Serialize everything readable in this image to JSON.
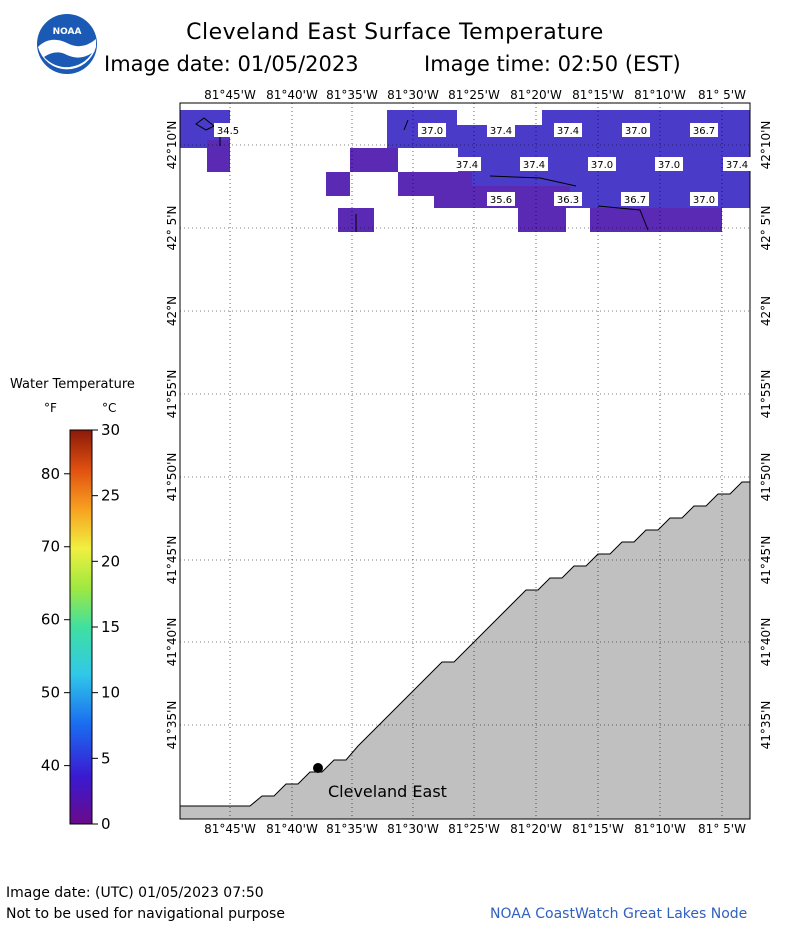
{
  "header": {
    "title": "Cleveland East Surface Temperature",
    "image_date": "Image date: 01/05/2023",
    "image_time": "Image time: 02:50 (EST)"
  },
  "logo": {
    "text": "NOAA"
  },
  "legend": {
    "title": "Water Temperature",
    "unit_f": "°F",
    "unit_c": "°C",
    "f_ticks": [
      "80",
      "70",
      "60",
      "50",
      "40"
    ],
    "c_ticks": [
      "30",
      "25",
      "20",
      "15",
      "10",
      "5",
      "0"
    ]
  },
  "map": {
    "lon_labels": [
      "81°45'W",
      "81°40'W",
      "81°35'W",
      "81°30'W",
      "81°25'W",
      "81°20'W",
      "81°15'W",
      "81°10'W",
      "81° 5'W"
    ],
    "lat_labels": [
      "42°10'N",
      "42° 5'N",
      "42°N",
      "41°55'N",
      "41°50'N",
      "41°45'N",
      "41°40'N",
      "41°35'N"
    ],
    "station_name": "Cleveland East",
    "temperature_labels": [
      "34.5",
      "37.0",
      "37.4",
      "37.4",
      "37.0",
      "36.7",
      "37.4",
      "37.4",
      "37.0",
      "37.0",
      "37.4",
      "35.6",
      "36.3",
      "36.7",
      "37.0"
    ],
    "colors": {
      "land": "#c0c0c0",
      "water_cold": "#4a3cc8",
      "water_colder": "#5a2ab4",
      "water_coldest": "#6e22aa"
    }
  },
  "footer": {
    "utc_date": "Image date: (UTC) 01/05/2023  07:50",
    "disclaimer": "Not to be used for navigational purpose",
    "credit": "NOAA CoastWatch Great Lakes Node"
  }
}
